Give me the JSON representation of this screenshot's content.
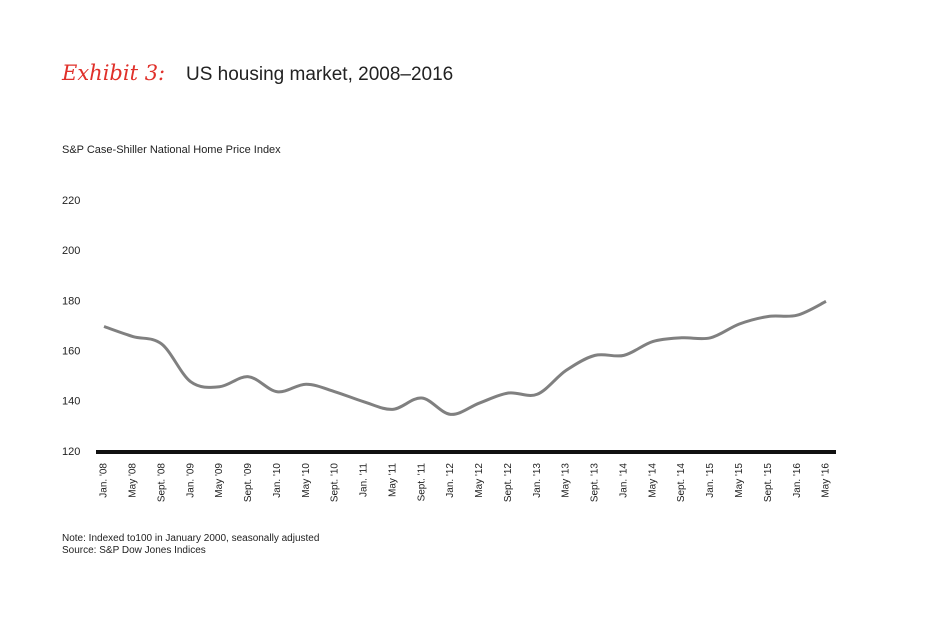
{
  "chart_data": {
    "type": "line",
    "title_prefix": "Exhibit 3:",
    "title": "US housing market, 2008–2016",
    "y_axis_label": "S&P Case-Shiller National Home Price Index",
    "notes": [
      "Note: Indexed to100 in January 2000, seasonally adjusted",
      "Source: S&P Dow Jones Indices"
    ],
    "categories": [
      "Jan. '08",
      "May '08",
      "Sept. '08",
      "Jan. '09",
      "May '09",
      "Sept. '09",
      "Jan. '10",
      "May '10",
      "Sept. '10",
      "Jan. '11",
      "May '11",
      "Sept. '11",
      "Jan. '12",
      "May '12",
      "Sept. '12",
      "Jan. '13",
      "May '13",
      "Sept. '13",
      "Jan. '14",
      "May '14",
      "Sept. '14",
      "Jan. '15",
      "May '15",
      "Sept. '15",
      "Jan. '16",
      "May '16"
    ],
    "series": [
      {
        "name": "S&P Case-Shiller National Home Price Index",
        "color": "#808080",
        "values": [
          170,
          166,
          163,
          148,
          146,
          150,
          144,
          147,
          144,
          140,
          137,
          141.5,
          135,
          139.5,
          143.5,
          143,
          152.5,
          158.5,
          158.5,
          164,
          165.5,
          165.5,
          171,
          174,
          174.5,
          180
        ]
      }
    ],
    "ylim": [
      120,
      220
    ],
    "yticks": [
      120,
      140,
      160,
      180,
      200,
      220
    ],
    "title_prefix_color": "#e0302a",
    "baseline_color": "#111111"
  }
}
